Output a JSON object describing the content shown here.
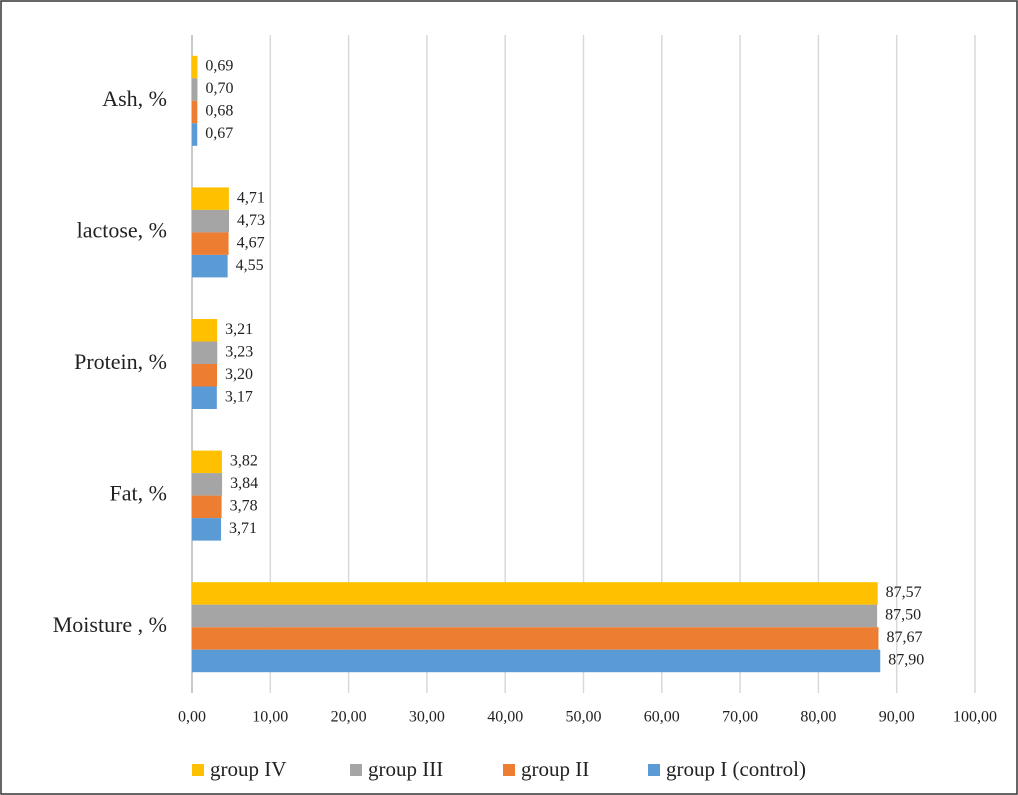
{
  "chart_data": {
    "type": "bar",
    "orientation": "horizontal",
    "categories": [
      "Moisture , %",
      "Fat, %",
      "Protein, %",
      "lactose, %",
      "Ash, %"
    ],
    "series": [
      {
        "name": "group IV",
        "color": "#FFC000",
        "values": [
          87.57,
          3.82,
          3.21,
          4.71,
          0.69
        ],
        "value_labels": [
          "87,57",
          "3,82",
          "3,21",
          "4,71",
          "0,69"
        ]
      },
      {
        "name": "group III",
        "color": "#A5A5A5",
        "values": [
          87.5,
          3.84,
          3.23,
          4.73,
          0.7
        ],
        "value_labels": [
          "87,50",
          "3,84",
          "3,23",
          "4,73",
          "0,70"
        ]
      },
      {
        "name": "group II",
        "color": "#ED7D31",
        "values": [
          87.67,
          3.78,
          3.2,
          4.67,
          0.68
        ],
        "value_labels": [
          "87,67",
          "3,78",
          "3,20",
          "4,67",
          "0,68"
        ]
      },
      {
        "name": "group I (control)",
        "color": "#5B9BD5",
        "values": [
          87.9,
          3.71,
          3.17,
          4.55,
          0.67
        ],
        "value_labels": [
          "87,90",
          "3,71",
          "3,17",
          "4,55",
          "0,67"
        ]
      }
    ],
    "xlim": [
      0,
      100
    ],
    "xticks": [
      {
        "value": 0,
        "label": "0,00"
      },
      {
        "value": 10,
        "label": "10,00"
      },
      {
        "value": 20,
        "label": "20,00"
      },
      {
        "value": 30,
        "label": "30,00"
      },
      {
        "value": 40,
        "label": "40,00"
      },
      {
        "value": 50,
        "label": "50,00"
      },
      {
        "value": 60,
        "label": "60,00"
      },
      {
        "value": 70,
        "label": "70,00"
      },
      {
        "value": 80,
        "label": "80,00"
      },
      {
        "value": 90,
        "label": "90,00"
      },
      {
        "value": 100,
        "label": "100,00"
      }
    ],
    "grid": true,
    "legend": "bottom"
  }
}
